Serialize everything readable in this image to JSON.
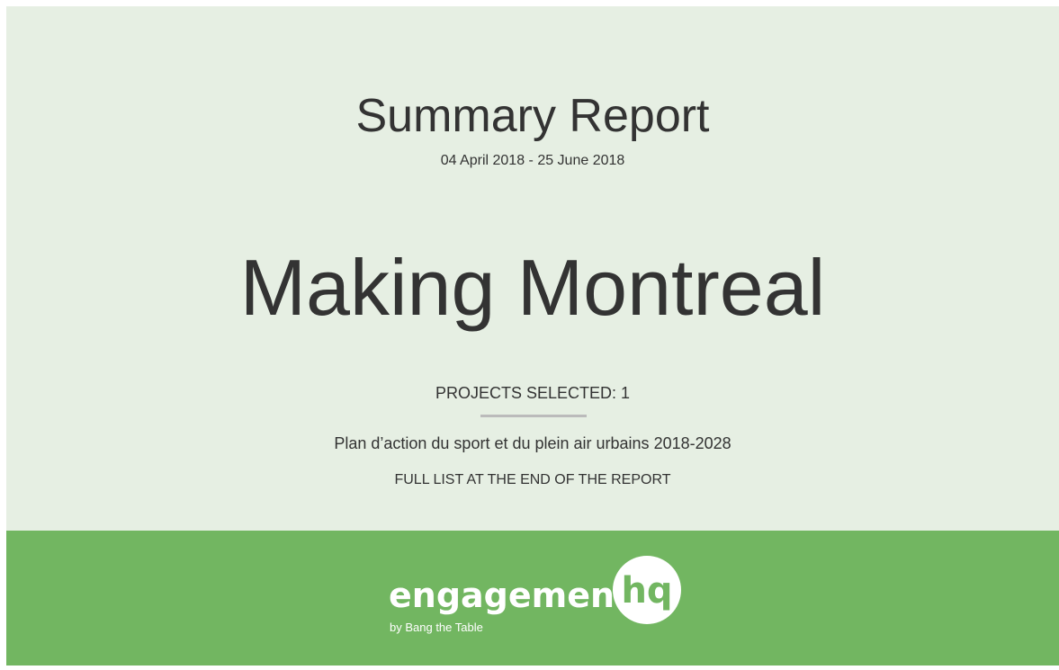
{
  "header": {
    "title": "Summary Report",
    "date_range": "04 April 2018 - 25 June 2018"
  },
  "project": {
    "name": "Making Montreal",
    "selected_label": "PROJECTS SELECTED: 1",
    "selected_project": "Plan d’action du sport et du plein air urbains 2018-2028",
    "note": "FULL LIST AT THE END OF THE REPORT"
  },
  "footer": {
    "logo_text": "engagement",
    "logo_badge": "hq",
    "logo_byline": "by Bang the Table"
  }
}
